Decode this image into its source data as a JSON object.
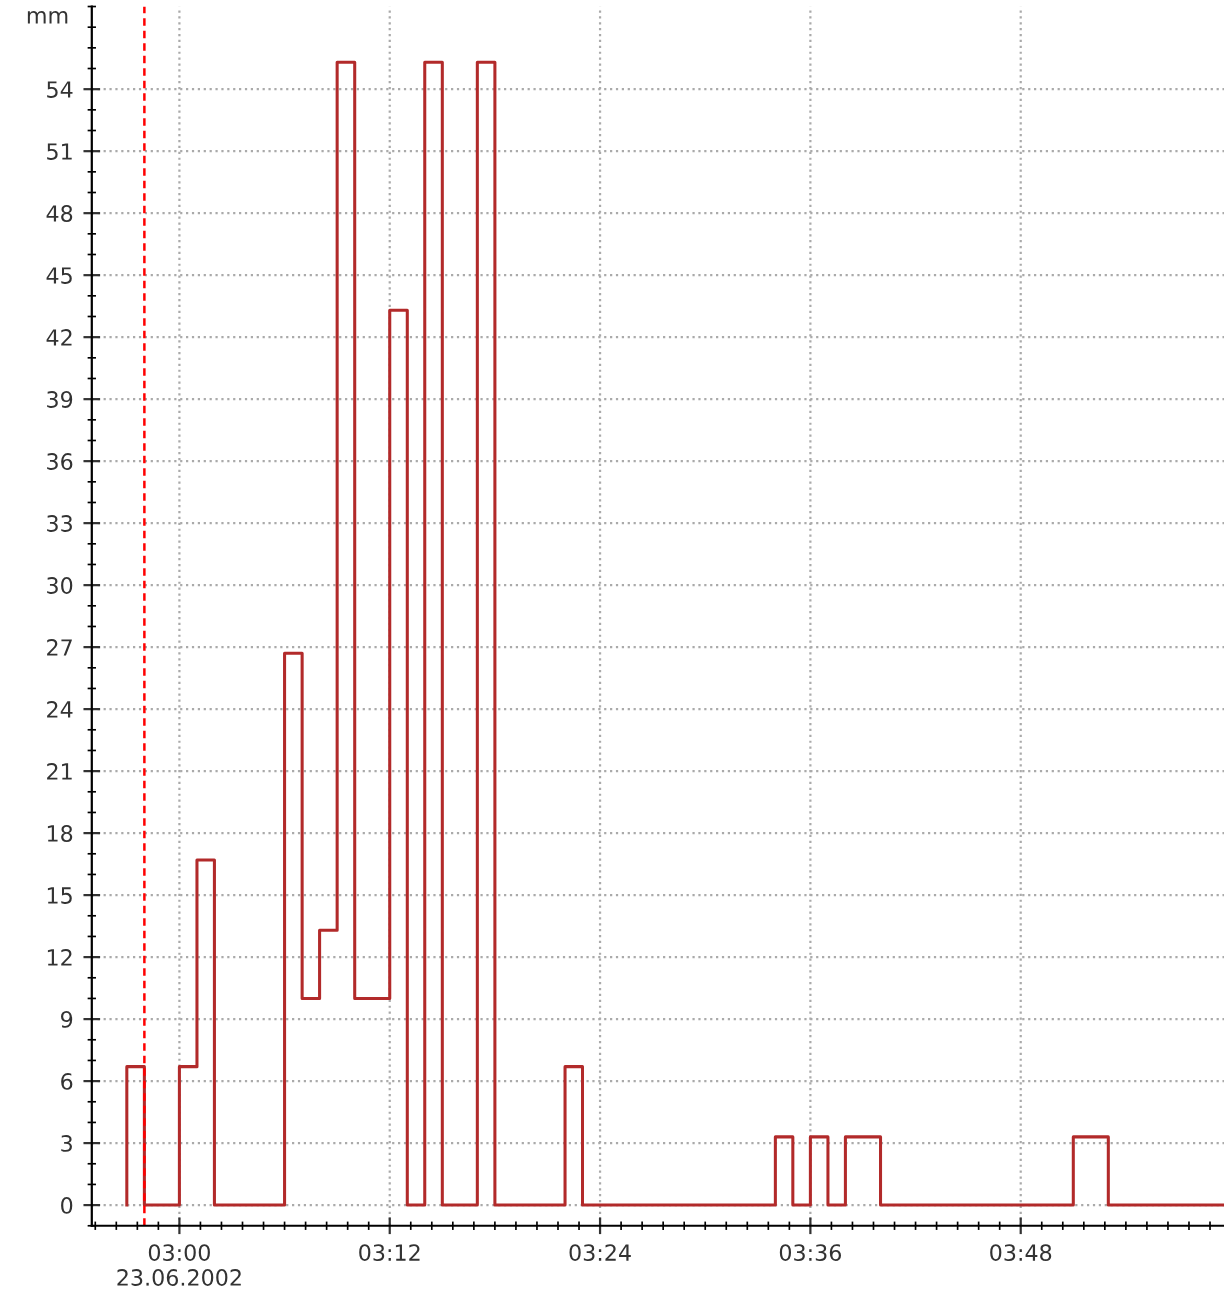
{
  "chart_data": {
    "type": "step",
    "ylabel": "mm",
    "x": [
      2.95,
      2.95,
      2.9667,
      3,
      3.0167,
      3.0333,
      3.1,
      3.1167,
      3.1333,
      3.15,
      3.1667,
      3.2,
      3.2167,
      3.2333,
      3.25,
      3.2833,
      3.3,
      3.3667,
      3.3833,
      3.5667,
      3.5833,
      3.6,
      3.6167,
      3.6333,
      3.6667,
      3.85,
      3.8833,
      3.9933
    ],
    "series": [
      {
        "color": "#b22a2a",
        "values": [
          0,
          6.7,
          0,
          6.7,
          16.7,
          0,
          26.7,
          10,
          13.3,
          55.3,
          10,
          43.3,
          0,
          55.3,
          0,
          55.3,
          0,
          6.7,
          0,
          3.3,
          0,
          3.3,
          0,
          3.3,
          0,
          3.3,
          0,
          0
        ]
      }
    ],
    "xlim": [
      2.9167,
      3.9933
    ],
    "xticks": [
      {
        "value": 3,
        "label": "03:00\n23.06.2002"
      },
      {
        "value": 3.2,
        "label": "03:12"
      },
      {
        "value": 3.4,
        "label": "03:24"
      },
      {
        "value": 3.6,
        "label": "03:36"
      },
      {
        "value": 3.8,
        "label": "03:48"
      }
    ],
    "ylim": [
      -1,
      58
    ],
    "yticks": [
      0,
      3,
      6,
      9,
      12,
      15,
      18,
      21,
      24,
      27,
      30,
      33,
      36,
      39,
      42,
      45,
      48,
      51,
      54
    ],
    "ref_lines": [
      {
        "axis": "x",
        "value": 2.9667,
        "color": "#ff0000",
        "line_style": "dashed"
      }
    ],
    "grid": true
  }
}
